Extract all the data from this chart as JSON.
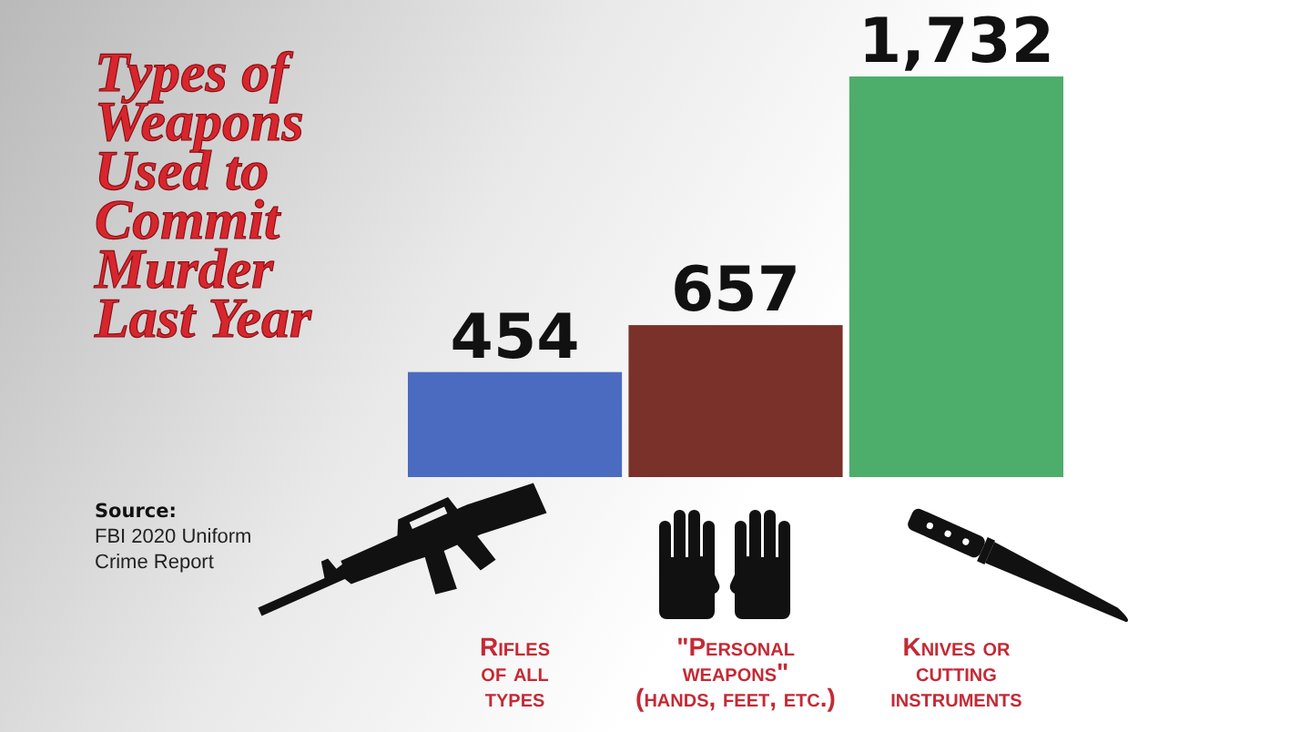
{
  "chart_data": {
    "type": "bar",
    "title": "Types of Weapons Used to Commit Murder Last Year",
    "categories": [
      "Rifles\nof all\ntypes",
      "\"Personal\nweapons\"\n(hands, feet, etc.)",
      "Knives or\ncutting\ninstruments"
    ],
    "values": [
      454,
      657,
      1732
    ],
    "colors": [
      "#4a6bc0",
      "#7a3129",
      "#4dae6b"
    ],
    "value_labels": [
      "454",
      "657",
      "1,732"
    ],
    "annotations": [
      "Source:",
      "FBI 2020 Uniform Crime Report"
    ]
  }
}
